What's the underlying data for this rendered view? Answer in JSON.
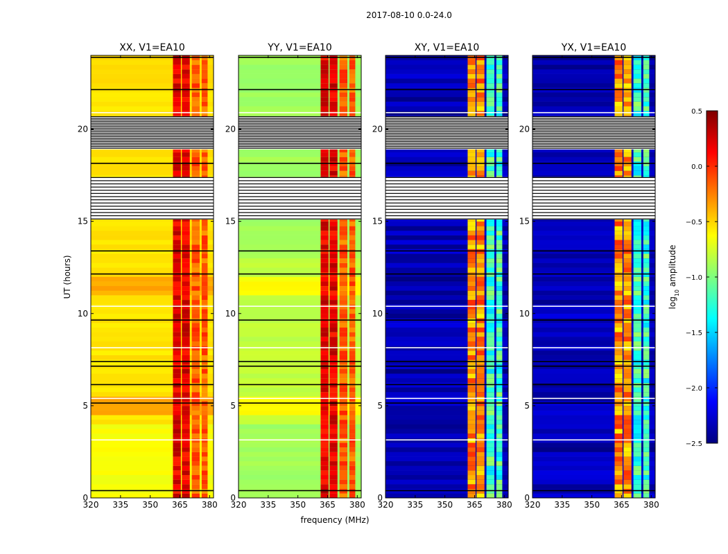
{
  "figure": {
    "suptitle": "2017-08-10 0.0-24.0",
    "xlabel": "frequency (MHz)",
    "ylabel": "UT (hours)"
  },
  "chart_data": {
    "type": "heatmap",
    "x_range_mhz": [
      320,
      382
    ],
    "y_range_hours": [
      0,
      24
    ],
    "xticks": [
      320,
      335,
      350,
      365,
      380
    ],
    "yticks": [
      0,
      5,
      10,
      15,
      20
    ],
    "colorbar": {
      "label_prefix": "log",
      "label_sub": "10",
      "label_suffix": " amplitude",
      "min": -2.5,
      "max": 0.5,
      "ticks": [
        0.5,
        0.0,
        -0.5,
        -1.0,
        -1.5,
        -2.0,
        -2.5
      ],
      "tick_labels": [
        "0.5",
        "0.0",
        "−0.5",
        "−1.0",
        "−1.5",
        "−2.0",
        "−2.5"
      ],
      "colormap": [
        "#00007f",
        "#0000ff",
        "#007fff",
        "#00ffff",
        "#7fff7f",
        "#ffff00",
        "#ff7f00",
        "#ff0000",
        "#7f0000"
      ]
    },
    "panels": [
      {
        "title": "XX, V1=EA10",
        "kind": "parallel",
        "base_log_amp": -0.55
      },
      {
        "title": "YY, V1=EA10",
        "kind": "parallel",
        "base_log_amp": -0.8
      },
      {
        "title": "XY, V1=EA10",
        "kind": "cross",
        "base_log_amp": -2.35
      },
      {
        "title": "YX, V1=EA10",
        "kind": "cross",
        "base_log_amp": -2.35
      }
    ],
    "bright_bands_mhz": [
      [
        361.5,
        365.5
      ],
      [
        366,
        370
      ],
      [
        371,
        375
      ],
      [
        376,
        379
      ]
    ],
    "flagged_blocks_hours": [
      [
        15.1,
        17.4
      ],
      [
        18.9,
        20.7
      ]
    ],
    "high_amplitude_hours": [
      [
        4.4,
        5.4
      ],
      [
        11.0,
        11.9
      ]
    ]
  }
}
